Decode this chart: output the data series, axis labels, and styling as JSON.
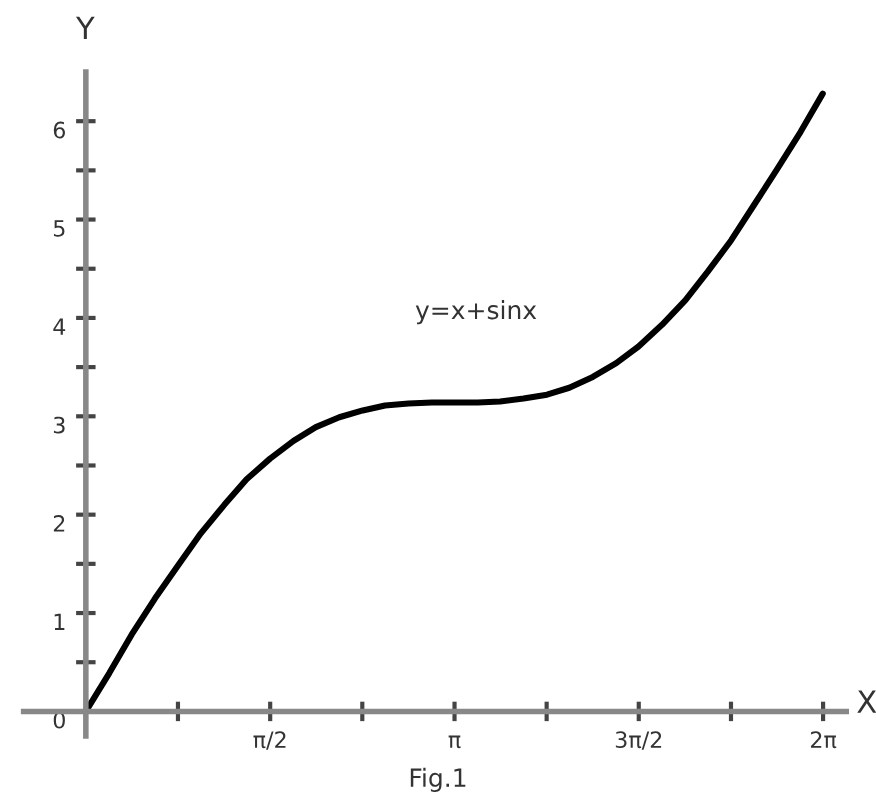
{
  "chart_data": {
    "type": "line",
    "xlabel": "X",
    "ylabel": "Y",
    "annotations": [
      "y=x+sinx",
      "Fig.1"
    ],
    "series": [
      {
        "color": "#000000",
        "x": [
          0,
          0.2,
          0.39,
          0.59,
          0.79,
          0.98,
          1.18,
          1.37,
          1.57,
          1.77,
          1.96,
          2.16,
          2.36,
          2.55,
          2.75,
          2.95,
          3.14,
          3.34,
          3.53,
          3.73,
          3.93,
          4.12,
          4.32,
          4.52,
          4.71,
          4.91,
          5.11,
          5.3,
          5.5,
          5.69,
          5.89,
          6.09,
          6.28
        ],
        "values": [
          0,
          0.39,
          0.78,
          1.15,
          1.49,
          1.81,
          2.1,
          2.36,
          2.57,
          2.75,
          2.89,
          2.99,
          3.06,
          3.11,
          3.13,
          3.14,
          3.14,
          3.14,
          3.15,
          3.18,
          3.22,
          3.29,
          3.4,
          3.54,
          3.71,
          3.93,
          4.18,
          4.47,
          4.79,
          5.14,
          5.51,
          5.89,
          6.28
        ]
      }
    ],
    "xlim": [
      -0.53,
      6.48
    ],
    "ylim": [
      -0.25,
      6.5
    ],
    "xticks": [
      {
        "value": 0.785,
        "label": null
      },
      {
        "value": 1.571,
        "label": "π/2"
      },
      {
        "value": 2.356,
        "label": null
      },
      {
        "value": 3.142,
        "label": "π"
      },
      {
        "value": 3.927,
        "label": null
      },
      {
        "value": 4.712,
        "label": "3π/2"
      },
      {
        "value": 5.498,
        "label": null
      },
      {
        "value": 6.283,
        "label": "2π"
      }
    ],
    "yticks": [
      0,
      {
        "value": 0.5,
        "label": null
      },
      1,
      {
        "value": 1.5,
        "label": null
      },
      2,
      {
        "value": 2.5,
        "label": null
      },
      3,
      {
        "value": 3.5,
        "label": null
      },
      4,
      {
        "value": 4.5,
        "label": null
      },
      5,
      {
        "value": 5.5,
        "label": null
      },
      6
    ],
    "grid": false,
    "legend": false,
    "marker": "none",
    "line_style": "solid"
  }
}
